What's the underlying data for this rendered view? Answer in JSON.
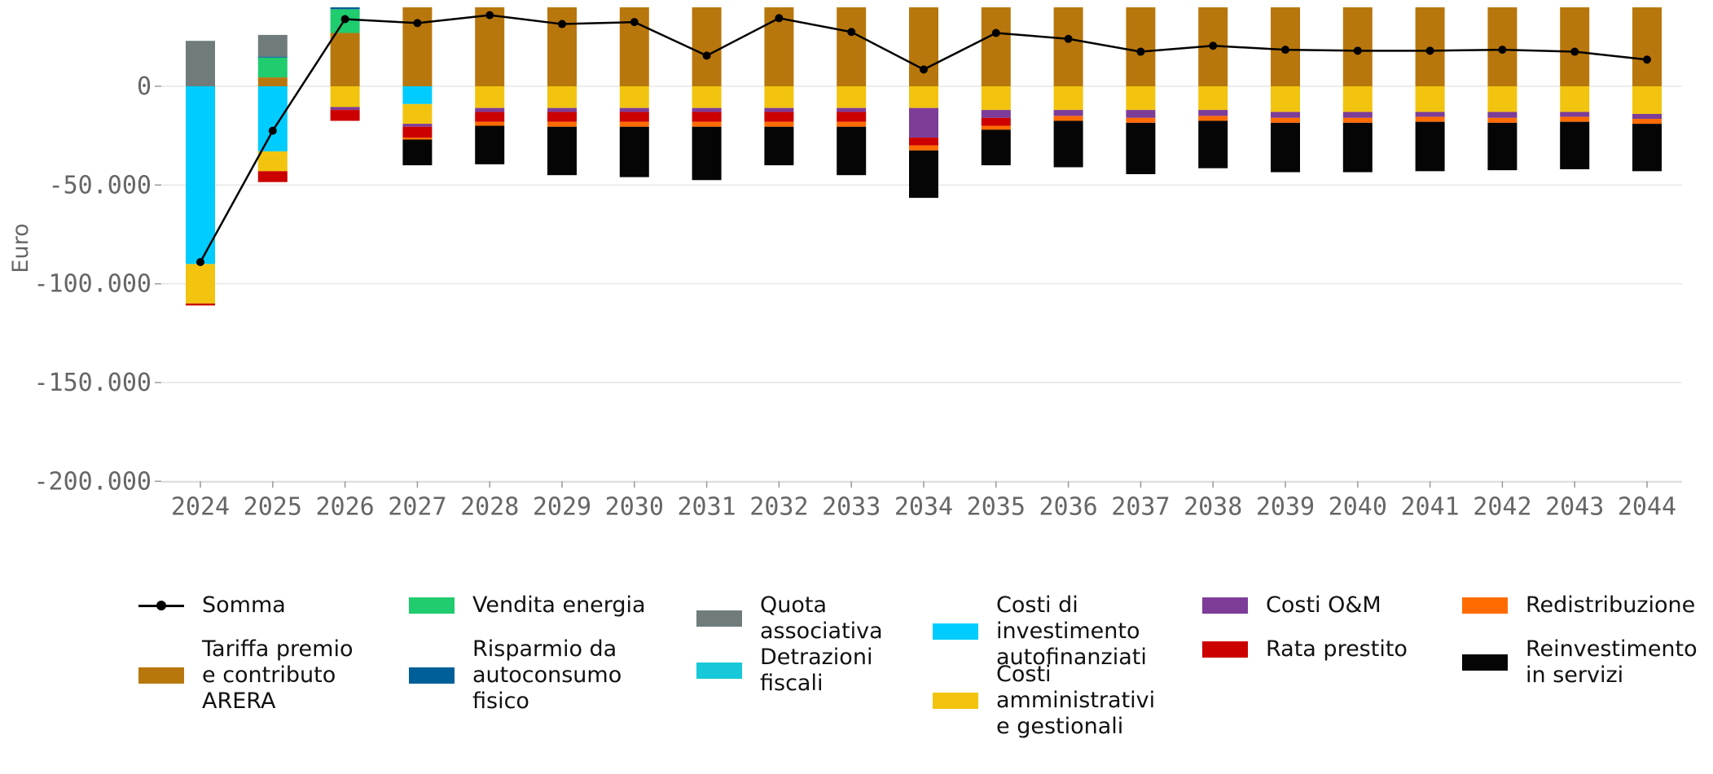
{
  "chart_data": {
    "type": "bar",
    "stacked": true,
    "ylabel": "Euro",
    "ylim": [
      -200000,
      40000
    ],
    "yticks": [
      0,
      -50000,
      -100000,
      -150000,
      -200000
    ],
    "ytick_labels": [
      "0",
      "-50.000",
      "-100.000",
      "-150.000",
      "-200.000"
    ],
    "grid": "horizontal",
    "legend_position": "bottom",
    "categories": [
      "2024",
      "2025",
      "2026",
      "2027",
      "2028",
      "2029",
      "2030",
      "2031",
      "2032",
      "2033",
      "2034",
      "2035",
      "2036",
      "2037",
      "2038",
      "2039",
      "2040",
      "2041",
      "2042",
      "2043",
      "2044"
    ],
    "line_series": {
      "name": "Somma",
      "color": "#000000",
      "values": [
        -89000,
        -22500,
        34000,
        32000,
        36000,
        31500,
        32500,
        15500,
        34500,
        27500,
        8500,
        27000,
        24000,
        17500,
        20500,
        18500,
        18000,
        18000,
        18500,
        17500,
        13500
      ]
    },
    "series": [
      {
        "name": "Tariffa premio\ne contributo\nARERA",
        "color": "#b8770d",
        "values": [
          0,
          4500,
          27000,
          40000,
          40000,
          40000,
          40000,
          40000,
          40000,
          40000,
          40000,
          40000,
          40000,
          40000,
          40000,
          40000,
          40000,
          40000,
          40000,
          40000,
          40000
        ]
      },
      {
        "name": "Vendita energia",
        "color": "#1fcc6e",
        "values": [
          0,
          10000,
          12000,
          0,
          0,
          0,
          0,
          0,
          0,
          0,
          0,
          0,
          0,
          0,
          0,
          0,
          0,
          0,
          0,
          0,
          0
        ]
      },
      {
        "name": "Risparmio da\nautoconsumo\nfisico",
        "color": "#005f99",
        "values": [
          0,
          500,
          1000,
          0,
          0,
          0,
          0,
          0,
          0,
          0,
          0,
          0,
          0,
          0,
          0,
          0,
          0,
          0,
          0,
          0,
          0
        ]
      },
      {
        "name": "Quota\nassociativa",
        "color": "#6f7c7b",
        "values": [
          23000,
          11000,
          0,
          0,
          0,
          0,
          0,
          0,
          0,
          0,
          0,
          0,
          0,
          0,
          0,
          0,
          0,
          0,
          0,
          0,
          0
        ]
      },
      {
        "name": "Detrazioni\nfiscali",
        "color": "#17c8d8",
        "values": [
          0,
          0,
          0,
          0,
          0,
          0,
          0,
          0,
          0,
          0,
          0,
          0,
          0,
          0,
          0,
          0,
          0,
          0,
          0,
          0,
          0
        ]
      },
      {
        "name": "Costi di\ninvestimento\nautofinanziati",
        "color": "#00ccff",
        "values": [
          -90000,
          -33000,
          0,
          -9000,
          0,
          0,
          0,
          0,
          0,
          0,
          0,
          0,
          0,
          0,
          0,
          0,
          0,
          0,
          0,
          0,
          0
        ]
      },
      {
        "name": "Costi\namministrativi\ne gestionali",
        "color": "#f2c40f",
        "values": [
          -20000,
          -10000,
          -10500,
          -10000,
          -11000,
          -11000,
          -11000,
          -11000,
          -11000,
          -11000,
          -11000,
          -12000,
          -12000,
          -12000,
          -12000,
          -13000,
          -13000,
          -13000,
          -13000,
          -13000,
          -14000
        ]
      },
      {
        "name": "Costi O&M",
        "color": "#7d3c98",
        "values": [
          0,
          0,
          -1500,
          -1500,
          -2000,
          -2000,
          -2000,
          -2000,
          -2000,
          -2000,
          -15000,
          -4000,
          -3000,
          -4000,
          -3000,
          -3000,
          -3000,
          -2500,
          -3000,
          -2500,
          -2500
        ]
      },
      {
        "name": "Rata prestito",
        "color": "#cc0000",
        "values": [
          -1000,
          -5500,
          -5500,
          -5500,
          -5000,
          -5000,
          -5000,
          -5000,
          -5000,
          -5000,
          -4000,
          -4000,
          0,
          0,
          0,
          0,
          0,
          0,
          0,
          0,
          0
        ]
      },
      {
        "name": "Redistribuzione",
        "color": "#ff6b00",
        "values": [
          0,
          0,
          0,
          -1000,
          -2000,
          -2500,
          -2500,
          -2500,
          -2500,
          -2500,
          -2500,
          -2000,
          -2500,
          -2500,
          -2500,
          -2500,
          -2500,
          -2500,
          -2500,
          -2500,
          -2500
        ]
      },
      {
        "name": "Reinvestimento\nin servizi",
        "color": "#050505",
        "values": [
          0,
          0,
          0,
          -13000,
          -19500,
          -24500,
          -25500,
          -27000,
          -19500,
          -24500,
          -24000,
          -18000,
          -23500,
          -26000,
          -24000,
          -25000,
          -25000,
          -25000,
          -24000,
          -24000,
          -24000
        ]
      }
    ]
  },
  "legend": [
    {
      "label": "Somma",
      "kind": "line",
      "color": "#000000"
    },
    {
      "label": "Tariffa premio\ne contributo\nARERA",
      "kind": "bar",
      "color": "#b8770d"
    },
    {
      "label": "Vendita energia",
      "kind": "bar",
      "color": "#1fcc6e"
    },
    {
      "label": "Risparmio da\nautoconsumo\nfisico",
      "kind": "bar",
      "color": "#005f99"
    },
    {
      "label": "Quota\nassociativa",
      "kind": "bar",
      "color": "#6f7c7b"
    },
    {
      "label": "Detrazioni\nfiscali",
      "kind": "bar",
      "color": "#17c8d8"
    },
    {
      "label": "Costi di\ninvestimento\nautofinanziati",
      "kind": "bar",
      "color": "#00ccff"
    },
    {
      "label": "Costi\namministrativi\ne gestionali",
      "kind": "bar",
      "color": "#f2c40f"
    },
    {
      "label": "Costi O&M",
      "kind": "bar",
      "color": "#7d3c98"
    },
    {
      "label": "Rata prestito",
      "kind": "bar",
      "color": "#cc0000"
    },
    {
      "label": "Redistribuzione",
      "kind": "bar",
      "color": "#ff6b00"
    },
    {
      "label": "Reinvestimento\nin servizi",
      "kind": "bar",
      "color": "#050505"
    }
  ]
}
